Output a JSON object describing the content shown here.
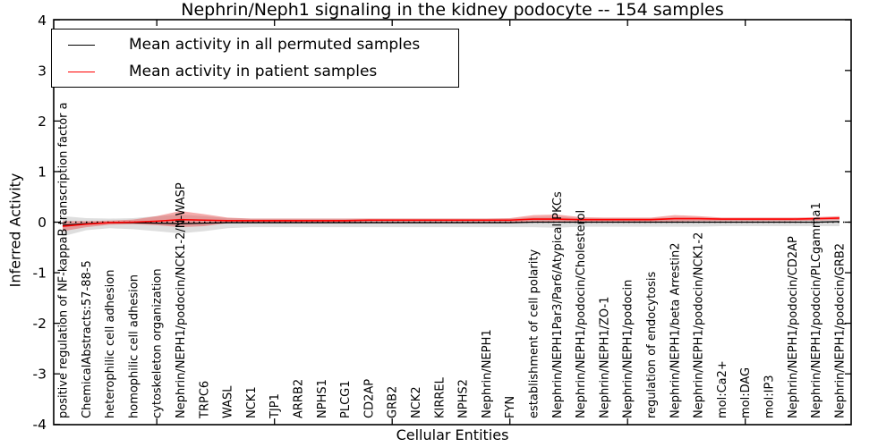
{
  "title": "Nephrin/Neph1 signaling in the kidney podocyte -- 154 samples",
  "axes": {
    "x_label": "Cellular Entities",
    "y_label": "Inferred Activity",
    "y_tick_labels": [
      "4",
      "3",
      "2",
      "1",
      "0",
      "-1",
      "-2",
      "-3",
      "-4"
    ]
  },
  "legend": {
    "entries": [
      {
        "label": "Mean activity in all permuted samples",
        "color": "#000000"
      },
      {
        "label": "Mean activity in patient samples",
        "color": "#ff0000"
      }
    ]
  },
  "colors": {
    "permuted_line": "#000000",
    "patient_line": "#ff0000",
    "permuted_band": "#bdbdbd",
    "patient_band": "#e64545",
    "frame": "#000000",
    "background": "#ffffff"
  },
  "chart_data": {
    "type": "line",
    "title": "Nephrin/Neph1 signaling in the kidney podocyte -- 154 samples",
    "xlabel": "Cellular Entities",
    "ylabel": "Inferred Activity",
    "ylim": [
      -4,
      4
    ],
    "yticks": [
      4,
      3,
      2,
      1,
      0,
      -1,
      -2,
      -3,
      -4
    ],
    "grid": false,
    "zero_line": "dotted",
    "legend_position": "upper left",
    "categories": [
      "positive regulation of NF-kappaB transcription factor a",
      "ChemicalAbstracts:57-88-5",
      "heterophilic cell adhesion",
      "homophilic cell adhesion",
      "cytoskeleton organization",
      "Nephrin/NEPH1/podocin/NCK1-2/N-WASP",
      "TRPC6",
      "WASL",
      "NCK1",
      "TJP1",
      "ARRB2",
      "NPHS1",
      "PLCG1",
      "CD2AP",
      "GRB2",
      "NCK2",
      "KIRREL",
      "NPHS2",
      "Nephrin/NEPH1",
      "FYN",
      "establishment of cell polarity",
      "Nephrin/NEPH1Par3/Par6/Atypical PKCs",
      "Nephrin/NEPH1/podocin/Cholesterol",
      "Nephrin/NEPH1/ZO-1",
      "Nephrin/NEPH1/podocin",
      "regulation of endocytosis",
      "Nephrin/NEPH1/beta Arrestin2",
      "Nephrin/NEPH1/podocin/NCK1-2",
      "mol:Ca2+",
      "mol:DAG",
      "mol:IP3",
      "Nephrin/NEPH1/podocin/CD2AP",
      "Nephrin/NEPH1/podocin/PLCgamma1",
      "Nephrin/NEPH1/podocin/GRB2"
    ],
    "series": [
      {
        "name": "Mean activity in all permuted samples",
        "color": "#000000",
        "values": [
          -0.06,
          -0.03,
          -0.01,
          -0.01,
          -0.02,
          -0.03,
          -0.02,
          -0.01,
          -0.01,
          -0.01,
          -0.01,
          -0.01,
          -0.01,
          -0.01,
          -0.01,
          -0.01,
          -0.01,
          -0.01,
          -0.01,
          -0.01,
          0,
          0,
          0,
          0,
          0,
          0,
          0,
          0,
          0,
          0,
          0,
          0,
          0,
          0.01
        ]
      },
      {
        "name": "Mean activity in patient samples",
        "color": "#ff0000",
        "values": [
          -0.08,
          -0.04,
          -0.01,
          0,
          0.02,
          0.05,
          0.04,
          0.03,
          0.03,
          0.03,
          0.03,
          0.03,
          0.03,
          0.04,
          0.04,
          0.04,
          0.04,
          0.04,
          0.04,
          0.04,
          0.06,
          0.06,
          0.05,
          0.05,
          0.05,
          0.05,
          0.07,
          0.07,
          0.06,
          0.06,
          0.06,
          0.06,
          0.07,
          0.08
        ]
      }
    ],
    "bands": [
      {
        "name": "permuted samples range",
        "color": "#bdbdbd",
        "opacity": 0.5,
        "upper": [
          0.12,
          0.08,
          0.07,
          0.08,
          0.12,
          0.15,
          0.12,
          0.08,
          0.07,
          0.07,
          0.07,
          0.07,
          0.07,
          0.07,
          0.07,
          0.07,
          0.07,
          0.07,
          0.07,
          0.07,
          0.1,
          0.11,
          0.08,
          0.08,
          0.08,
          0.08,
          0.09,
          0.09,
          0.08,
          0.08,
          0.08,
          0.08,
          0.08,
          0.09
        ],
        "lower": [
          -0.28,
          -0.16,
          -0.12,
          -0.14,
          -0.18,
          -0.22,
          -0.18,
          -0.12,
          -0.1,
          -0.1,
          -0.1,
          -0.1,
          -0.1,
          -0.1,
          -0.1,
          -0.1,
          -0.1,
          -0.1,
          -0.1,
          -0.1,
          -0.1,
          -0.11,
          -0.09,
          -0.09,
          -0.09,
          -0.09,
          -0.09,
          -0.09,
          -0.08,
          -0.08,
          -0.08,
          -0.08,
          -0.08,
          -0.08
        ]
      },
      {
        "name": "patient samples range",
        "color": "#e64545",
        "opacity": 0.45,
        "upper": [
          0.02,
          0.02,
          0.03,
          0.05,
          0.12,
          0.22,
          0.16,
          0.09,
          0.07,
          0.07,
          0.07,
          0.07,
          0.07,
          0.07,
          0.07,
          0.07,
          0.07,
          0.07,
          0.07,
          0.08,
          0.14,
          0.15,
          0.1,
          0.09,
          0.09,
          0.09,
          0.14,
          0.12,
          0.09,
          0.09,
          0.09,
          0.09,
          0.1,
          0.12
        ],
        "lower": [
          -0.18,
          -0.1,
          -0.05,
          -0.04,
          -0.06,
          -0.1,
          -0.08,
          -0.02,
          -0.01,
          -0.01,
          -0.01,
          -0.01,
          -0.01,
          0,
          0,
          0,
          0,
          0,
          0,
          0,
          0,
          0.01,
          0.01,
          0.01,
          0.01,
          0.01,
          0.01,
          0.02,
          0.02,
          0.02,
          0.02,
          0.02,
          0.03,
          0.04
        ]
      }
    ]
  }
}
